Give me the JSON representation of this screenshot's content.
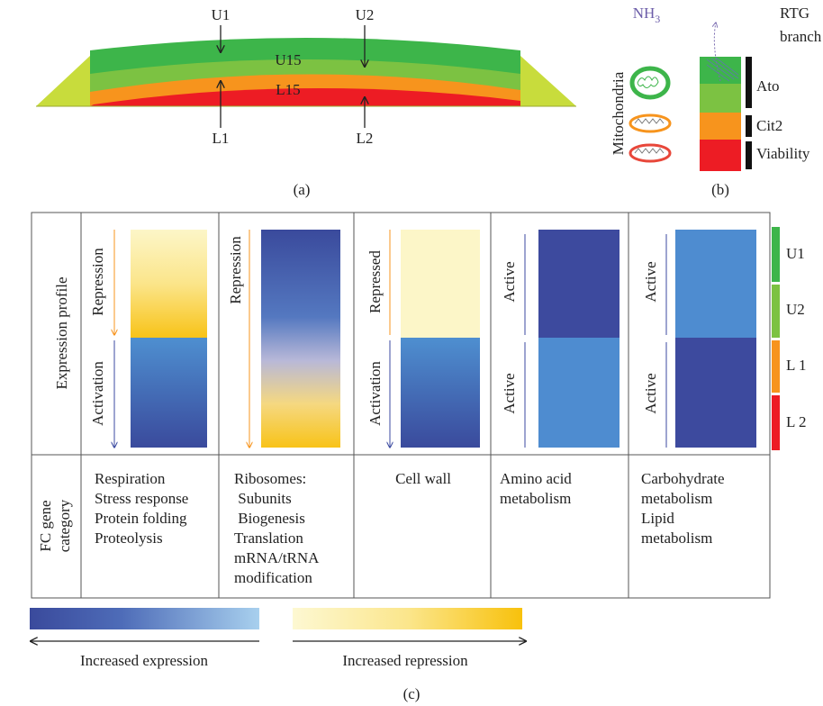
{
  "panel_a": {
    "top_labels": [
      "U1",
      "U2"
    ],
    "layers": [
      "U15",
      "L15"
    ],
    "bottom_labels": [
      "L1",
      "L2"
    ],
    "caption": "(a)"
  },
  "panel_b": {
    "side_label": "Mitochondria",
    "gas": "NH",
    "gas_subscript": "3",
    "branch": [
      "RTG",
      "branch"
    ],
    "bands": [
      "Ato",
      "Cit2",
      "Viability"
    ],
    "caption": "(b)"
  },
  "panel_c": {
    "row_headers": {
      "expression": "Expression profile",
      "category": [
        "FC gene",
        "category"
      ]
    },
    "columns": [
      {
        "profile": [
          "Repression",
          "Activation"
        ],
        "genes": [
          "Respiration",
          "Stress response",
          "Protein folding",
          "Proteolysis"
        ]
      },
      {
        "profile": [
          "Repression"
        ],
        "genes": [
          "Ribosomes:",
          " Subunits",
          " Biogenesis",
          "Translation",
          "mRNA/tRNA",
          "modification"
        ]
      },
      {
        "profile": [
          "Repressed",
          "Activation"
        ],
        "genes": [
          "Cell wall"
        ]
      },
      {
        "profile": [
          "Active",
          "Active"
        ],
        "genes": [
          "Amino acid",
          "metabolism"
        ]
      },
      {
        "profile": [
          "Active",
          "Active"
        ],
        "genes": [
          "Carbohydrate",
          "metabolism",
          "Lipid",
          "metabolism"
        ]
      }
    ],
    "strata": [
      "U1",
      "U2",
      "L 1",
      "L 2"
    ],
    "legend": [
      "Increased expression",
      "Increased repression"
    ],
    "caption": "(c)"
  }
}
